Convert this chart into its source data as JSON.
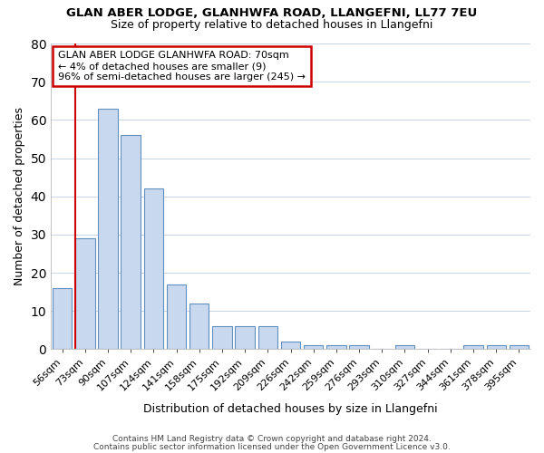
{
  "title1": "GLAN ABER LODGE, GLANHWFA ROAD, LLANGEFNI, LL77 7EU",
  "title2": "Size of property relative to detached houses in Llangefni",
  "xlabel": "Distribution of detached houses by size in Llangefni",
  "ylabel": "Number of detached properties",
  "categories": [
    "56sqm",
    "73sqm",
    "90sqm",
    "107sqm",
    "124sqm",
    "141sqm",
    "158sqm",
    "175sqm",
    "192sqm",
    "209sqm",
    "226sqm",
    "242sqm",
    "259sqm",
    "276sqm",
    "293sqm",
    "310sqm",
    "327sqm",
    "344sqm",
    "361sqm",
    "378sqm",
    "395sqm"
  ],
  "values": [
    16,
    29,
    63,
    56,
    42,
    17,
    12,
    6,
    6,
    6,
    2,
    1,
    1,
    1,
    0,
    1,
    0,
    0,
    1,
    1,
    1
  ],
  "bar_color": "#c8d8ee",
  "bar_edge_color": "#6090c0",
  "vline_x": 0.5,
  "vline_color": "#cc0000",
  "annotation_title": "GLAN ABER LODGE GLANHWFA ROAD: 70sqm",
  "annotation_line2": "← 4% of detached houses are smaller (9)",
  "annotation_line3": "96% of semi-detached houses are larger (245) →",
  "annotation_box_color": "#ffffff",
  "annotation_box_edge": "#cc0000",
  "ylim": [
    0,
    80
  ],
  "yticks": [
    0,
    10,
    20,
    30,
    40,
    50,
    60,
    70,
    80
  ],
  "grid_color": "#c8d4e8",
  "background_color": "#ffffff",
  "footer1": "Contains HM Land Registry data © Crown copyright and database right 2024.",
  "footer2": "Contains public sector information licensed under the Open Government Licence v3.0."
}
